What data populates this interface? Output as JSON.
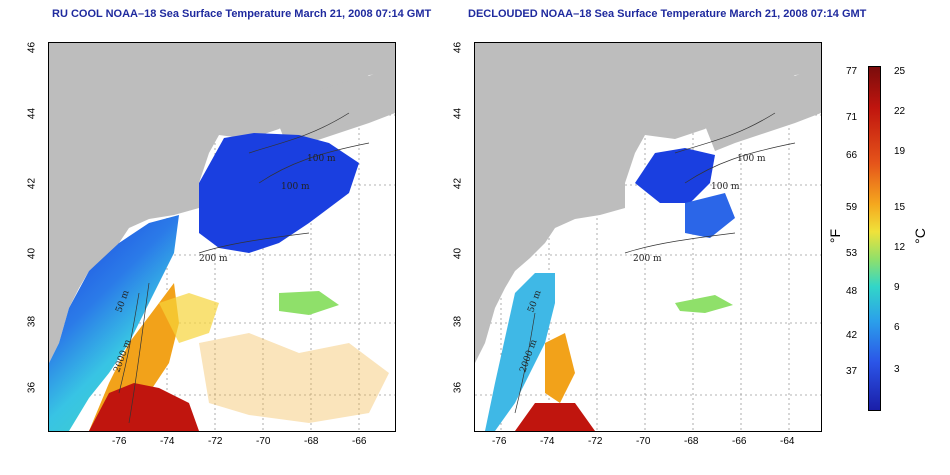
{
  "left_panel": {
    "title": "RU COOL NOAA–18 Sea Surface Temperature March 21, 2008 07:14 GMT"
  },
  "right_panel": {
    "title": "DECLOUDED NOAA–18 Sea Surface Temperature March 21, 2008 07:14 GMT"
  },
  "axes": {
    "x_ticks": [
      "-76",
      "-74",
      "-72",
      "-70",
      "-68",
      "-66",
      "-64"
    ],
    "y_ticks": [
      "36",
      "38",
      "40",
      "42",
      "44",
      "46"
    ]
  },
  "contour_labels": [
    "100 m",
    "100 m",
    "200 m",
    "50 m",
    "2000 m",
    "50 m"
  ],
  "colorbar": {
    "fahrenheit_ticks": [
      "77",
      "71",
      "66",
      "59",
      "53",
      "48",
      "42",
      "37"
    ],
    "celsius_ticks": [
      "25",
      "22",
      "19",
      "15",
      "12",
      "9",
      "6",
      "3"
    ],
    "fahrenheit_unit": "°F",
    "celsius_unit": "°C"
  },
  "colors": {
    "land": "#bdbdbd",
    "cold": "#1a3fe0",
    "mid": "#35c6e6",
    "warm": "#f2a21a",
    "hot": "#c0150e",
    "title": "#1f2a9e"
  }
}
